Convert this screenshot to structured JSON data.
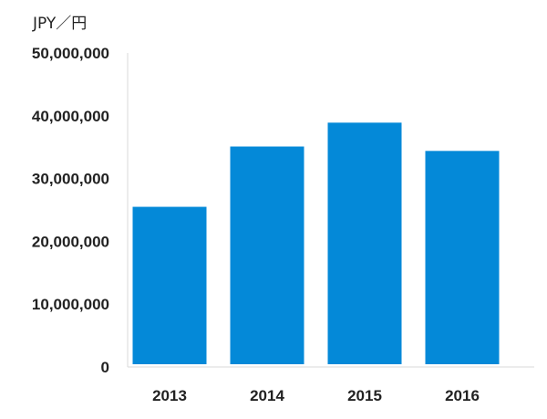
{
  "chart_data": {
    "type": "bar",
    "unit_label": "JPY／円",
    "categories": [
      "2013",
      "2014",
      "2015",
      "2016"
    ],
    "values": [
      25500000,
      35100000,
      38900000,
      34400000
    ],
    "ylim": [
      0,
      50000000
    ],
    "yticks": [
      0,
      10000000,
      20000000,
      30000000,
      40000000,
      50000000
    ],
    "ytick_labels": [
      "0",
      "10,000,000",
      "20,000,000",
      "30,000,000",
      "40,000,000",
      "50,000,000"
    ],
    "bar_color": "#0489D8",
    "axis_color": "#D9D9D9",
    "grid": false,
    "legend": "none"
  }
}
